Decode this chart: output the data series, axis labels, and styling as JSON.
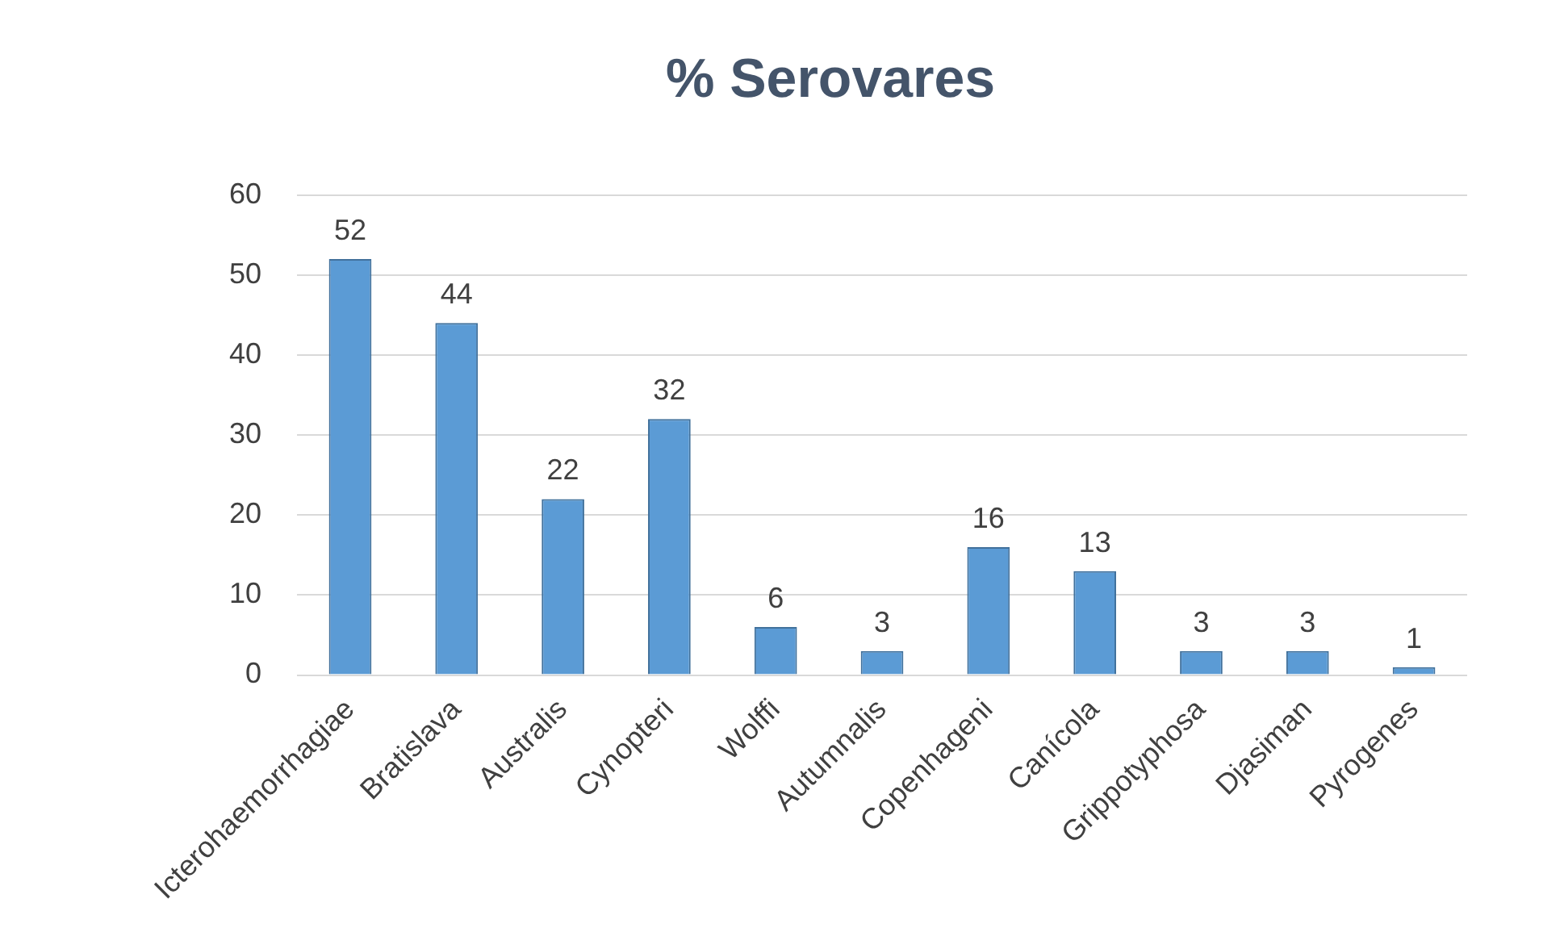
{
  "chart_data": {
    "type": "bar",
    "title": "% Serovares",
    "categories": [
      "Icterohaemorrhagiae",
      "Bratislava",
      "Australis",
      "Cynopteri",
      "Wolffi",
      "Autumnalis",
      "Copenhageni",
      "Canícola",
      "Grippotyphosa",
      "Djasiman",
      "Pyrogenes"
    ],
    "values": [
      52,
      44,
      22,
      32,
      6,
      3,
      16,
      13,
      3,
      3,
      1
    ],
    "color": "#5b9bd5",
    "ylim": [
      0,
      60
    ],
    "yticks": [
      0,
      10,
      20,
      30,
      40,
      50,
      60
    ],
    "grid": "y",
    "data_labels": true,
    "legend": false
  }
}
